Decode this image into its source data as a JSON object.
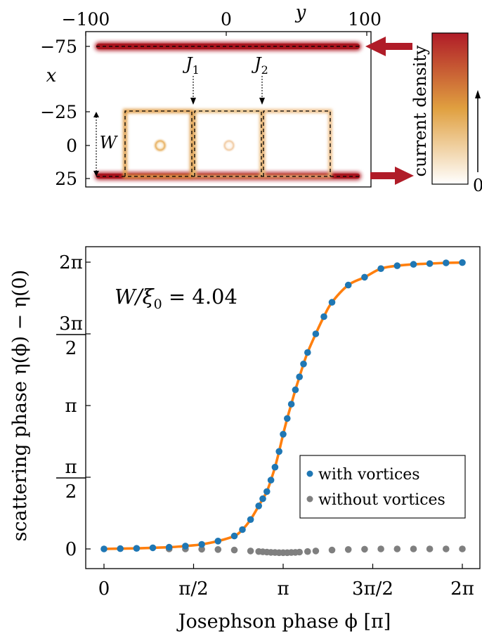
{
  "chart_data": [
    {
      "type": "heatmap",
      "xlabel": "x",
      "ylabel": "y",
      "x_axis_ticks": [
        "−75",
        "−25",
        "0",
        "25"
      ],
      "y_axis_ticks": [
        "−100",
        "0",
        "100"
      ],
      "x_tick_values": [
        -75,
        -25,
        0,
        25
      ],
      "y_tick_values": [
        -100,
        0,
        100
      ],
      "x_range": [
        -75,
        25
      ],
      "y_range": [
        -100,
        100
      ],
      "junction_labels": [
        {
          "label": "J",
          "sub": "1"
        },
        {
          "label": "J",
          "sub": "2"
        }
      ],
      "width_label": "W",
      "colorbar": {
        "label": "current density",
        "min_label": "0",
        "low_color": "#ffffff",
        "mid_color": "#e0a040",
        "high_color": "#b01c28"
      },
      "arrow_color": "#b01c28"
    },
    {
      "type": "scatter",
      "xlabel": "Josephson phase ϕ [π]",
      "ylabel": "scattering phase η(ϕ) − η(0)",
      "annotation": "W/ξ₀ = 4.04",
      "annotation_parts": {
        "lhs": "W/ξ",
        "sub": "0",
        "rhs": " = 4.04"
      },
      "xlim": [
        0,
        2
      ],
      "ylim": [
        0,
        2
      ],
      "x_ticks": [
        {
          "value": 0,
          "label": "0"
        },
        {
          "value": 0.5,
          "label": "π/2"
        },
        {
          "value": 1,
          "label": "π"
        },
        {
          "value": 1.5,
          "label": "3π/2"
        },
        {
          "value": 2,
          "label": "2π"
        }
      ],
      "y_ticks": [
        {
          "value": 0,
          "label": "0"
        },
        {
          "value": 0.5,
          "num": "π",
          "den": "2"
        },
        {
          "value": 1,
          "label": "π"
        },
        {
          "value": 1.5,
          "num": "3π",
          "den": "2"
        },
        {
          "value": 2,
          "label": "2π"
        }
      ],
      "fit_color": "#ff7f0e",
      "series": [
        {
          "name": "with vortices",
          "color": "#1f77b4",
          "x": [
            0,
            0.0909,
            0.1818,
            0.2727,
            0.3636,
            0.4545,
            0.5455,
            0.6364,
            0.7273,
            0.7727,
            0.8182,
            0.8636,
            0.8864,
            0.9091,
            0.9318,
            0.9545,
            0.9773,
            1.0,
            1.0227,
            1.0455,
            1.0682,
            1.0909,
            1.1136,
            1.1364,
            1.1818,
            1.2273,
            1.2727,
            1.3636,
            1.4545,
            1.5455,
            1.6364,
            1.7273,
            1.8182,
            1.9091,
            2.0
          ],
          "y": [
            0.0,
            0.002,
            0.004,
            0.008,
            0.012,
            0.02,
            0.032,
            0.055,
            0.09,
            0.135,
            0.205,
            0.3,
            0.35,
            0.4,
            0.48,
            0.57,
            0.68,
            0.8,
            0.91,
            1.01,
            1.11,
            1.2,
            1.29,
            1.37,
            1.5,
            1.62,
            1.72,
            1.84,
            1.895,
            1.955,
            1.975,
            1.985,
            1.99,
            1.995,
            1.997
          ]
        },
        {
          "name": "without vortices",
          "color": "#7f7f7f",
          "x": [
            0.3636,
            0.4545,
            0.5455,
            0.6364,
            0.7273,
            0.8182,
            0.8636,
            0.8864,
            0.9091,
            0.9318,
            0.9545,
            0.9773,
            1.0,
            1.0227,
            1.0455,
            1.0682,
            1.0909,
            1.1364,
            1.1818,
            1.2727,
            1.3636,
            1.4545,
            1.5455,
            1.6364,
            1.7273,
            1.8182,
            1.9091,
            2.0
          ],
          "y": [
            0.0,
            0.0,
            -0.002,
            -0.004,
            -0.008,
            -0.014,
            -0.018,
            -0.02,
            -0.022,
            -0.024,
            -0.025,
            -0.026,
            -0.026,
            -0.026,
            -0.025,
            -0.024,
            -0.022,
            -0.018,
            -0.014,
            -0.008,
            -0.004,
            -0.002,
            0.0,
            0.0,
            0.0,
            0.0,
            0.0,
            0.0
          ]
        }
      ],
      "legend_position": "lower-right"
    }
  ]
}
